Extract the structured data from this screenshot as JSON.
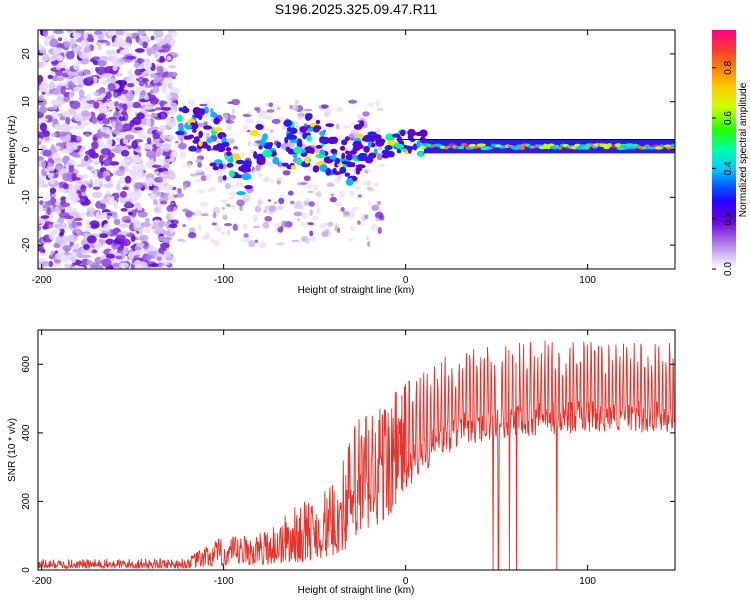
{
  "title": "S196.2025.325.09.47.R11",
  "chart_data": [
    {
      "type": "heatmap",
      "title": "S196.2025.325.09.47.R11",
      "xlabel": "Height of straight line (km)",
      "ylabel": "Frequency (Hz)",
      "xlim": [
        -202,
        148
      ],
      "ylim": [
        -25,
        25
      ],
      "x_ticks": [
        -200,
        -100,
        0,
        100
      ],
      "y_ticks": [
        -20,
        -10,
        0,
        10,
        20
      ],
      "grid": false,
      "colorbar": {
        "label": "Normalized spectral amplitude",
        "range": [
          0,
          0.95
        ],
        "ticks": [
          0.0,
          0.2,
          0.4,
          0.6,
          0.8
        ],
        "colors": [
          "#e6d9f7",
          "#b98ee8",
          "#7a1fdb",
          "#3a00ff",
          "#00c8ff",
          "#00ff66",
          "#ccff00",
          "#ffa500",
          "#ff2a6a"
        ]
      },
      "ridge": {
        "description": "signal trace",
        "points": [
          {
            "x": -125,
            "y": 6
          },
          {
            "x": -112,
            "y": 4
          },
          {
            "x": -100,
            "y": 0
          },
          {
            "x": -90,
            "y": -5
          },
          {
            "x": -80,
            "y": 1
          },
          {
            "x": -65,
            "y": 0
          },
          {
            "x": -50,
            "y": 2
          },
          {
            "x": -35,
            "y": -3
          },
          {
            "x": -20,
            "y": 1
          },
          {
            "x": -8,
            "y": 0.5
          },
          {
            "x": 0,
            "y": 2
          },
          {
            "x": 10,
            "y": 1
          },
          {
            "x": 20,
            "y": 0.6
          },
          {
            "x": 60,
            "y": 0.6
          },
          {
            "x": 148,
            "y": 0.6
          }
        ]
      }
    },
    {
      "type": "line",
      "xlabel": "Height of straight line (km)",
      "ylabel": "SNR (10 * v/v)",
      "xlim": [
        -202,
        148
      ],
      "ylim": [
        0,
        700
      ],
      "x_ticks": [
        -200,
        -100,
        0,
        100
      ],
      "y_ticks": [
        0,
        200,
        400,
        600
      ],
      "color": "#e8312a",
      "series": [
        {
          "name": "SNR",
          "envelope": [
            {
              "x": -202,
              "low": 5,
              "high": 30
            },
            {
              "x": -120,
              "low": 5,
              "high": 35
            },
            {
              "x": -105,
              "low": 10,
              "high": 90
            },
            {
              "x": -80,
              "low": 15,
              "high": 110
            },
            {
              "x": -60,
              "low": 20,
              "high": 190
            },
            {
              "x": -40,
              "low": 40,
              "high": 250
            },
            {
              "x": -25,
              "low": 80,
              "high": 480
            },
            {
              "x": -10,
              "low": 150,
              "high": 520
            },
            {
              "x": 0,
              "low": 230,
              "high": 560
            },
            {
              "x": 15,
              "low": 310,
              "high": 610
            },
            {
              "x": 30,
              "low": 360,
              "high": 640
            },
            {
              "x": 50,
              "low": 380,
              "high": 660
            },
            {
              "x": 80,
              "low": 395,
              "high": 670
            },
            {
              "x": 110,
              "low": 400,
              "high": 670
            },
            {
              "x": 148,
              "low": 400,
              "high": 665
            }
          ],
          "dropouts": [
            48,
            51,
            57,
            61,
            83
          ]
        }
      ]
    }
  ]
}
